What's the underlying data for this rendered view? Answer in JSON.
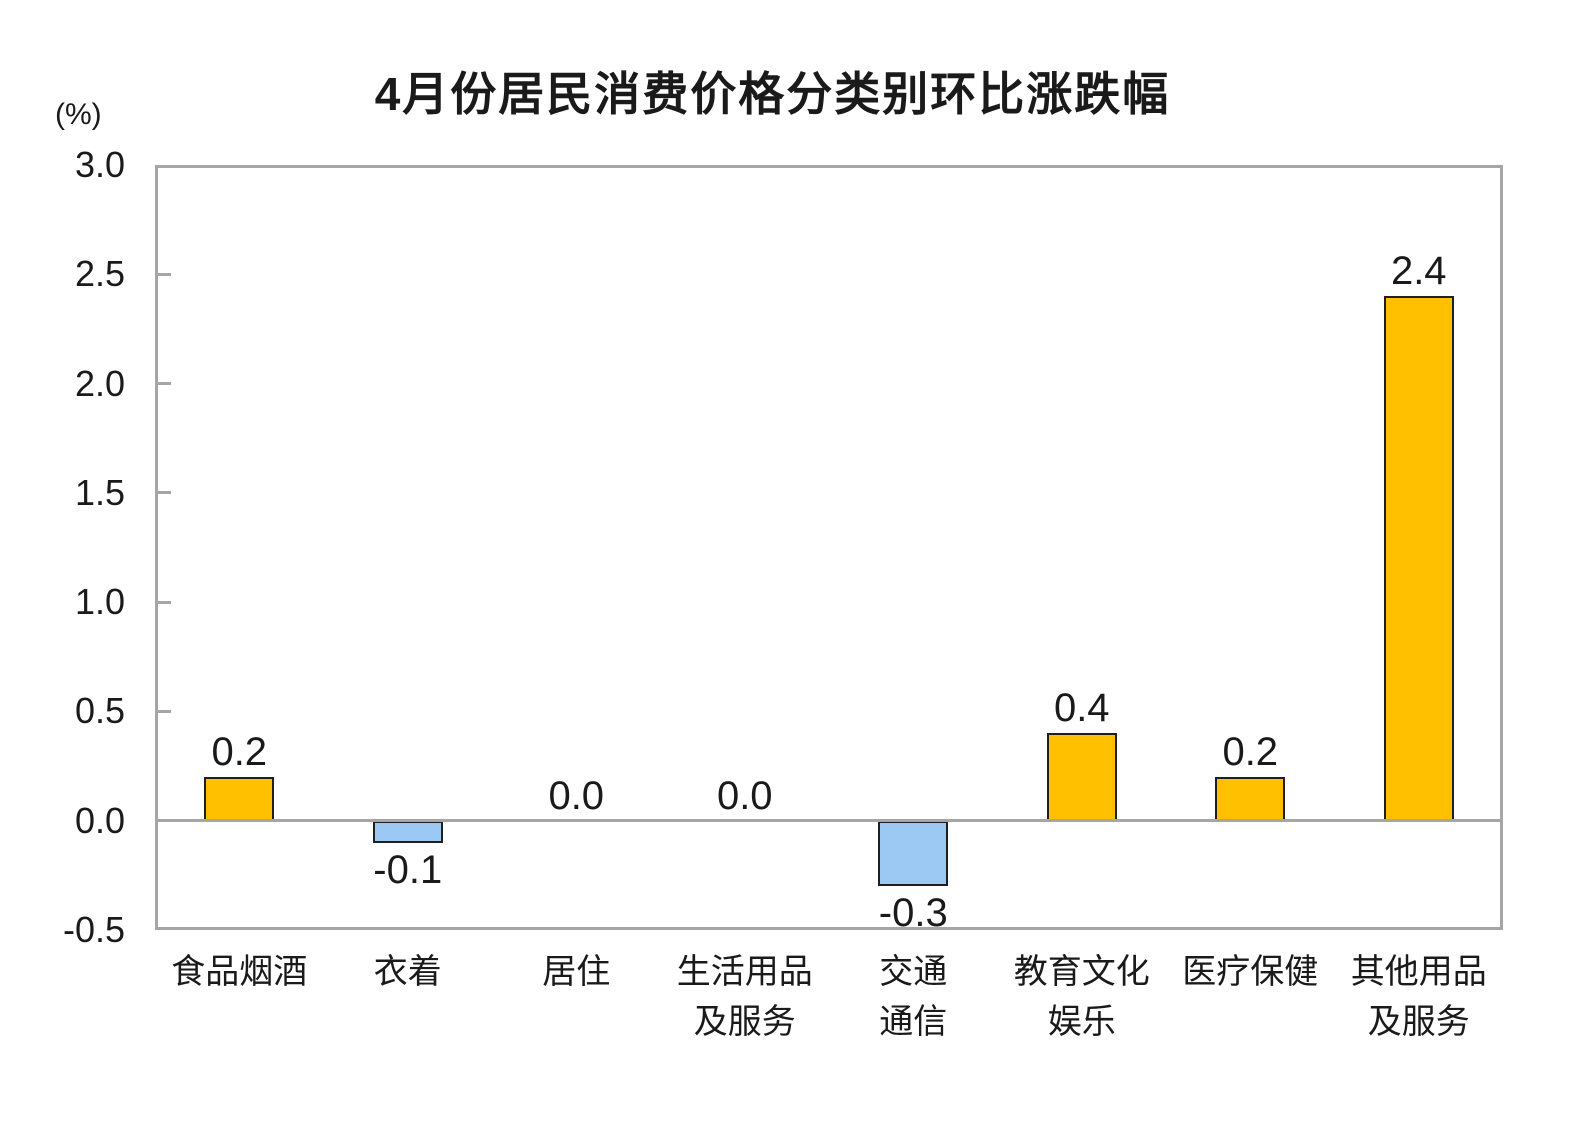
{
  "chart_data": {
    "type": "bar",
    "title": "4月份居民消费价格分类别环比涨跌幅",
    "unit_label": "(%)",
    "categories": [
      "食品烟酒",
      "衣着",
      "居住",
      "生活用品\n及服务",
      "交通\n通信",
      "教育文化\n娱乐",
      "医疗保健",
      "其他用品\n及服务"
    ],
    "values": [
      0.2,
      -0.1,
      0.0,
      0.0,
      -0.3,
      0.4,
      0.2,
      2.4
    ],
    "data_labels": [
      "0.2",
      "-0.1",
      "0.0",
      "0.0",
      "-0.3",
      "0.4",
      "0.2",
      "2.4"
    ],
    "ytick_values": [
      3.0,
      2.5,
      2.0,
      1.5,
      1.0,
      0.5,
      0.0,
      -0.5
    ],
    "ytick_labels": [
      "3.0",
      "2.5",
      "2.0",
      "1.5",
      "1.0",
      "0.5",
      "0.0",
      "-0.5"
    ],
    "ylim": [
      -0.5,
      3.0
    ],
    "ytick_interval": 0.5,
    "grid": false,
    "legend": "none",
    "colors": {
      "positive_bar": "#FFC000",
      "negative_bar": "#9BC9F3",
      "bar_border": "#1F1F1F",
      "axis_frame": "#A6A6A6",
      "text": "#1A1A1A",
      "background": "#FFFFFF"
    }
  }
}
